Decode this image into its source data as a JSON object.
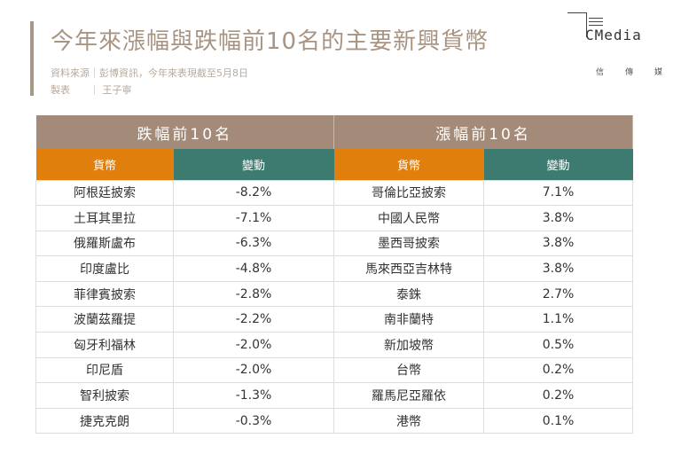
{
  "title": "今年來漲幅與跌幅前10名的主要新興貨幣",
  "source_line": "資料來源｜彭博資訊，今年來表現截至5月8日",
  "author_line": "製表　　｜ 王子寧",
  "logo": {
    "text": "CMedia",
    "chinese": [
      "信",
      "傳",
      "媒"
    ]
  },
  "colors": {
    "header": "#a48a78",
    "currency": "#e17f0d",
    "change": "#3d7a70"
  },
  "losers": {
    "title": "跌幅前10名",
    "col_currency": "貨幣",
    "col_change": "變動",
    "rows": [
      [
        "阿根廷披索",
        "-8.2%"
      ],
      [
        "土耳其里拉",
        "-7.1%"
      ],
      [
        "俄羅斯盧布",
        "-6.3%"
      ],
      [
        "印度盧比",
        "-4.8%"
      ],
      [
        "菲律賓披索",
        "-2.8%"
      ],
      [
        "波蘭茲羅提",
        "-2.2%"
      ],
      [
        "匈牙利福林",
        "-2.0%"
      ],
      [
        "印尼盾",
        "-2.0%"
      ],
      [
        "智利披索",
        "-1.3%"
      ],
      [
        "捷克克朗",
        "-0.3%"
      ]
    ]
  },
  "gainers": {
    "title": "漲幅前10名",
    "col_currency": "貨幣",
    "col_change": "變動",
    "rows": [
      [
        "哥倫比亞披索",
        "7.1%"
      ],
      [
        "中國人民幣",
        "3.8%"
      ],
      [
        "墨西哥披索",
        "3.8%"
      ],
      [
        "馬來西亞吉林特",
        "3.8%"
      ],
      [
        "泰銖",
        "2.7%"
      ],
      [
        "南非蘭特",
        "1.1%"
      ],
      [
        "新加坡幣",
        "0.5%"
      ],
      [
        "台幣",
        "0.2%"
      ],
      [
        "羅馬尼亞羅依",
        "0.2%"
      ],
      [
        "港幣",
        "0.1%"
      ]
    ]
  }
}
